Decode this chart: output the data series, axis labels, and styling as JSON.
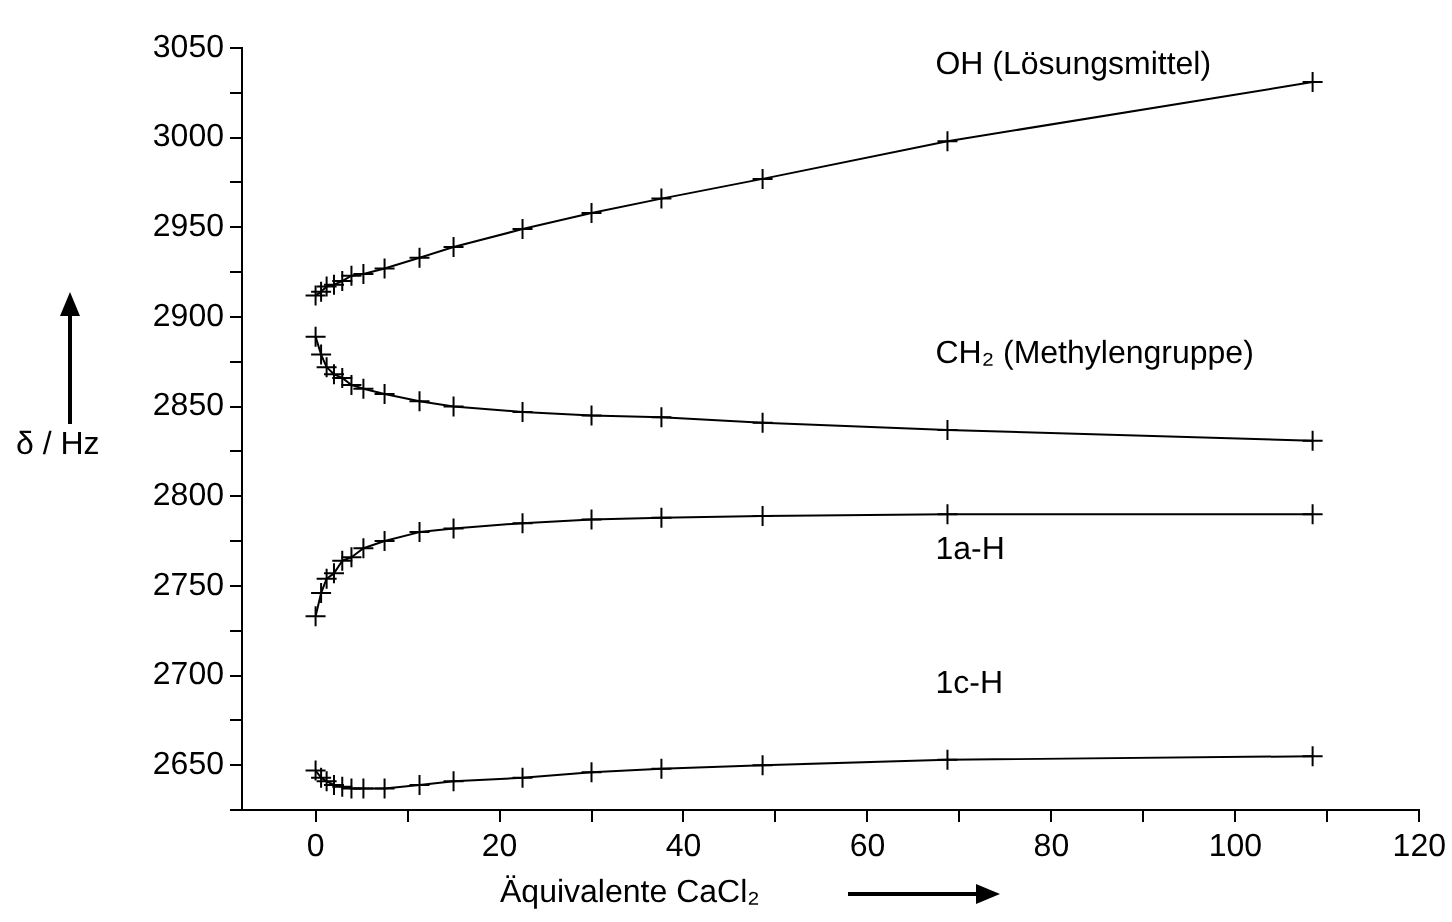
{
  "chart_data": {
    "type": "line",
    "xlabel": "Äquivalente CaCl₂",
    "ylabel": "δ / Hz",
    "marker": "cross",
    "line_style": "solid",
    "x": [
      0,
      0.6,
      1.2,
      2,
      2.9,
      3.9,
      5.2,
      7.5,
      11.3,
      15,
      22.5,
      30,
      37.6,
      48.6,
      68.7,
      108.4
    ],
    "series": [
      {
        "name": "OH (Lösungsmittel)",
        "color": "#000000",
        "values": [
          2912,
          2914,
          2917,
          2918,
          2920,
          2923,
          2924,
          2927,
          2933,
          2939,
          2949,
          2958,
          2966,
          2977,
          2998,
          3031
        ]
      },
      {
        "name": "CH₂ (Methylengruppe)",
        "color": "#000000",
        "values": [
          2889,
          2879,
          2872,
          2868,
          2866,
          2862,
          2860,
          2857,
          2853,
          2850,
          2847,
          2845,
          2844,
          2841,
          2837,
          2831
        ]
      },
      {
        "name": "1a-H",
        "color": "#000000",
        "values": [
          2733,
          2746,
          2754,
          2757,
          2764,
          2766,
          2771,
          2775,
          2780,
          2782,
          2785,
          2787,
          2788,
          2789,
          2790,
          2790
        ]
      },
      {
        "name": "1c-H",
        "color": "#000000",
        "values": [
          2647,
          2643,
          2641,
          2639,
          2638,
          2637,
          2637,
          2637,
          2639,
          2641,
          2643,
          2646,
          2648,
          2650,
          2653,
          2655
        ]
      }
    ],
    "xlim": [
      -8,
      120
    ],
    "xticks": [
      0,
      {
        "value": 10,
        "label": null
      },
      20,
      {
        "value": 30,
        "label": null
      },
      40,
      {
        "value": 50,
        "label": null
      },
      60,
      {
        "value": 70,
        "label": null
      },
      80,
      {
        "value": 90,
        "label": null
      },
      100,
      {
        "value": 110,
        "label": null
      },
      120
    ],
    "ylim": [
      2625,
      3050
    ],
    "yticks": [
      {
        "value": 2625,
        "label": null
      },
      2650,
      {
        "value": 2675,
        "label": null
      },
      2700,
      {
        "value": 2725,
        "label": null
      },
      2750,
      {
        "value": 2775,
        "label": null
      },
      2800,
      {
        "value": 2825,
        "label": null
      },
      2850,
      {
        "value": 2875,
        "label": null
      },
      2900,
      {
        "value": 2925,
        "label": null
      },
      2950,
      {
        "value": 2975,
        "label": null
      },
      3000,
      {
        "value": 3025,
        "label": null
      },
      3050
    ]
  }
}
